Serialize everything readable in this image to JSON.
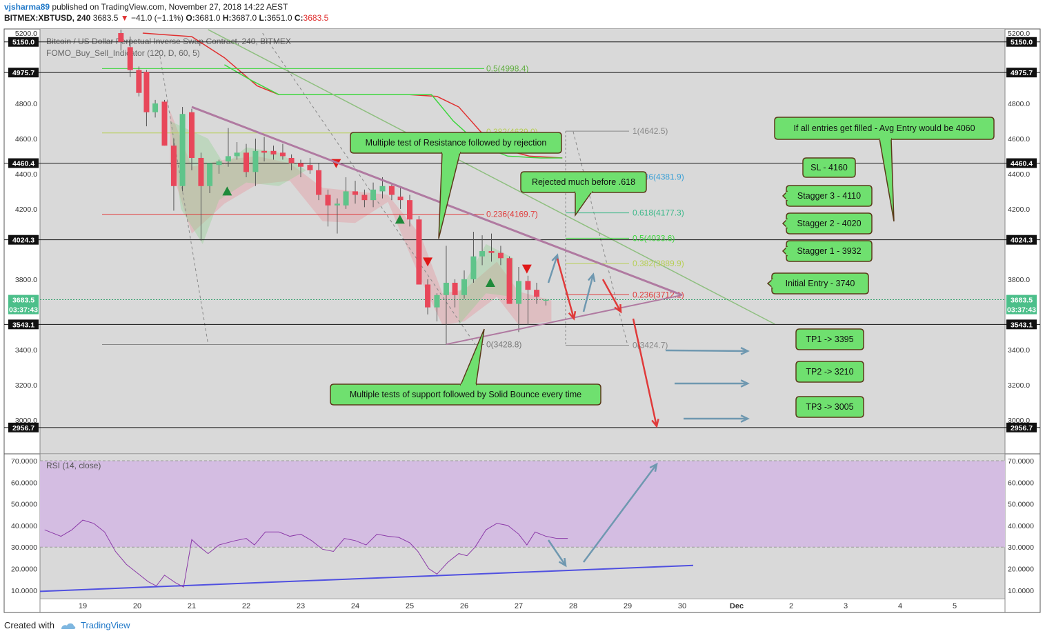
{
  "header": {
    "author": "vjsharma89",
    "published_text": "published on TradingView.com, November 27, 2018 14:22 AEST",
    "symbol": "BITMEX:XBTUSD, 240",
    "last": "3683.5",
    "change": "−41.0 (−1.1%)",
    "o_label": "O:",
    "o": "3681.0",
    "h_label": "H:",
    "h": "3687.0",
    "l_label": "L:",
    "l": "3651.0",
    "c_label": "C:",
    "c": "3683.5"
  },
  "footer": {
    "created_with": "Created with",
    "brand": "TradingView"
  },
  "colors": {
    "bg": "#d9d9d9",
    "up": "#5fc48a",
    "down": "#e8475a",
    "label_bg": "#6fe06f",
    "label_border": "#5a3a1a",
    "trend": "#b07aa1",
    "arrow_red": "#e03a3a",
    "arrow_blue": "#6f98b0",
    "rsi_line": "#8b3aa8",
    "rsi_band": "#d4bde2",
    "rsi_trend": "#5050e0"
  },
  "chart_data": {
    "type": "candlestick",
    "title": "Bitcoin / US Dollar Perpetual Inverse Swap Contract, 240, BITMEX",
    "indicator": "FOMO_Buy_Sell_Indicator (120, D, 60, 5)",
    "x_ticks": [
      "19",
      "20",
      "21",
      "22",
      "23",
      "24",
      "25",
      "26",
      "27",
      "28",
      "29",
      "30",
      "Dec",
      "2",
      "3",
      "4",
      "5"
    ],
    "y_ticks": [
      "5200.0",
      "4800.0",
      "4600.0",
      "4400.0",
      "4200.0",
      "3800.0",
      "3400.0",
      "3200.0",
      "3000.0"
    ],
    "ylim": [
      2940,
      5220
    ],
    "price_marks": [
      {
        "label": "5150.0",
        "value": 5150.0
      },
      {
        "label": "4975.7",
        "value": 4975.7
      },
      {
        "label": "4460.4",
        "value": 4460.4
      },
      {
        "label": "4024.3",
        "value": 4024.3
      },
      {
        "label": "3543.1",
        "value": 3543.1
      },
      {
        "label": "2956.7",
        "value": 2956.7
      }
    ],
    "last_price": {
      "label": "3683.5",
      "value": 3683.5,
      "countdown": "03:37:43"
    },
    "candles": [
      {
        "t": 19.7,
        "o": 5200,
        "h": 5220,
        "l": 5100,
        "c": 5150
      },
      {
        "t": 19.87,
        "o": 5120,
        "h": 5180,
        "l": 4950,
        "c": 4990
      },
      {
        "t": 20.03,
        "o": 4990,
        "h": 5010,
        "l": 4840,
        "c": 4860
      },
      {
        "t": 20.17,
        "o": 4980,
        "h": 4990,
        "l": 4670,
        "c": 4750
      },
      {
        "t": 20.33,
        "o": 4750,
        "h": 4820,
        "l": 4720,
        "c": 4800
      },
      {
        "t": 20.5,
        "o": 4810,
        "h": 4820,
        "l": 4560,
        "c": 4560
      },
      {
        "t": 20.67,
        "o": 4560,
        "h": 4600,
        "l": 4190,
        "c": 4330
      },
      {
        "t": 20.83,
        "o": 4330,
        "h": 4780,
        "l": 4300,
        "c": 4740
      },
      {
        "t": 21.0,
        "o": 4750,
        "h": 4770,
        "l": 4420,
        "c": 4490
      },
      {
        "t": 21.17,
        "o": 4490,
        "h": 4520,
        "l": 4020,
        "c": 4330
      },
      {
        "t": 21.33,
        "o": 4330,
        "h": 4440,
        "l": 4290,
        "c": 4460
      },
      {
        "t": 21.5,
        "o": 4450,
        "h": 4480,
        "l": 4400,
        "c": 4470
      },
      {
        "t": 21.67,
        "o": 4470,
        "h": 4660,
        "l": 4440,
        "c": 4500
      },
      {
        "t": 21.83,
        "o": 4500,
        "h": 4580,
        "l": 4480,
        "c": 4520
      },
      {
        "t": 22.0,
        "o": 4520,
        "h": 4570,
        "l": 4380,
        "c": 4410
      },
      {
        "t": 22.17,
        "o": 4410,
        "h": 4600,
        "l": 4330,
        "c": 4530
      },
      {
        "t": 22.33,
        "o": 4530,
        "h": 4610,
        "l": 4470,
        "c": 4520
      },
      {
        "t": 22.5,
        "o": 4530,
        "h": 4560,
        "l": 4480,
        "c": 4510
      },
      {
        "t": 22.67,
        "o": 4520,
        "h": 4570,
        "l": 4480,
        "c": 4500
      },
      {
        "t": 22.83,
        "o": 4490,
        "h": 4510,
        "l": 4420,
        "c": 4460
      },
      {
        "t": 23.0,
        "o": 4460,
        "h": 4480,
        "l": 4380,
        "c": 4440
      },
      {
        "t": 23.17,
        "o": 4450,
        "h": 4490,
        "l": 4400,
        "c": 4420
      },
      {
        "t": 23.33,
        "o": 4420,
        "h": 4460,
        "l": 4250,
        "c": 4280
      },
      {
        "t": 23.5,
        "o": 4280,
        "h": 4310,
        "l": 4100,
        "c": 4220
      },
      {
        "t": 23.67,
        "o": 4220,
        "h": 4260,
        "l": 4060,
        "c": 4230
      },
      {
        "t": 23.83,
        "o": 4220,
        "h": 4380,
        "l": 4200,
        "c": 4300
      },
      {
        "t": 24.0,
        "o": 4300,
        "h": 4360,
        "l": 4230,
        "c": 4280
      },
      {
        "t": 24.17,
        "o": 4280,
        "h": 4310,
        "l": 4210,
        "c": 4250
      },
      {
        "t": 24.33,
        "o": 4250,
        "h": 4350,
        "l": 4210,
        "c": 4310
      },
      {
        "t": 24.5,
        "o": 4300,
        "h": 4380,
        "l": 4260,
        "c": 4330
      },
      {
        "t": 24.67,
        "o": 4330,
        "h": 4340,
        "l": 4250,
        "c": 4280
      },
      {
        "t": 24.83,
        "o": 4270,
        "h": 4320,
        "l": 4200,
        "c": 4250
      },
      {
        "t": 25.0,
        "o": 4250,
        "h": 4280,
        "l": 4100,
        "c": 4140
      },
      {
        "t": 25.17,
        "o": 4140,
        "h": 4160,
        "l": 3770,
        "c": 3770
      },
      {
        "t": 25.33,
        "o": 3770,
        "h": 3800,
        "l": 3600,
        "c": 3640
      },
      {
        "t": 25.5,
        "o": 3640,
        "h": 3720,
        "l": 3560,
        "c": 3710
      },
      {
        "t": 25.67,
        "o": 3710,
        "h": 3990,
        "l": 3430,
        "c": 3780
      },
      {
        "t": 25.83,
        "o": 3780,
        "h": 3800,
        "l": 3640,
        "c": 3710
      },
      {
        "t": 26.0,
        "o": 3710,
        "h": 3850,
        "l": 3690,
        "c": 3800
      },
      {
        "t": 26.17,
        "o": 3800,
        "h": 4070,
        "l": 3780,
        "c": 3930
      },
      {
        "t": 26.33,
        "o": 3930,
        "h": 4050,
        "l": 3880,
        "c": 3960
      },
      {
        "t": 26.5,
        "o": 3960,
        "h": 4060,
        "l": 3900,
        "c": 3950
      },
      {
        "t": 26.67,
        "o": 3950,
        "h": 3990,
        "l": 3880,
        "c": 3920
      },
      {
        "t": 26.83,
        "o": 3920,
        "h": 3930,
        "l": 3660,
        "c": 3660
      },
      {
        "t": 27.0,
        "o": 3660,
        "h": 3870,
        "l": 3500,
        "c": 3790
      },
      {
        "t": 27.17,
        "o": 3790,
        "h": 3820,
        "l": 3540,
        "c": 3740
      },
      {
        "t": 27.33,
        "o": 3740,
        "h": 3780,
        "l": 3660,
        "c": 3700
      },
      {
        "t": 27.5,
        "o": 3681,
        "h": 3687,
        "l": 3651,
        "c": 3683.5
      }
    ],
    "rsi": {
      "label": "RSI (14, close)",
      "y_ticks": [
        "70.0000",
        "60.0000",
        "50.0000",
        "40.0000",
        "30.0000",
        "20.0000",
        "10.0000"
      ],
      "ylim": [
        8,
        72
      ],
      "band": [
        30,
        70
      ],
      "points": [
        [
          18.3,
          38
        ],
        [
          18.6,
          35
        ],
        [
          18.8,
          38
        ],
        [
          19.0,
          42.5
        ],
        [
          19.2,
          41
        ],
        [
          19.4,
          37
        ],
        [
          19.6,
          28
        ],
        [
          19.8,
          22
        ],
        [
          20.0,
          18
        ],
        [
          20.2,
          14
        ],
        [
          20.35,
          12
        ],
        [
          20.5,
          17
        ],
        [
          20.7,
          13.5
        ],
        [
          20.85,
          11.5
        ],
        [
          21.0,
          33.5
        ],
        [
          21.15,
          30
        ],
        [
          21.3,
          27
        ],
        [
          21.5,
          31
        ],
        [
          21.8,
          33
        ],
        [
          22.0,
          34
        ],
        [
          22.15,
          31
        ],
        [
          22.35,
          37
        ],
        [
          22.6,
          37
        ],
        [
          22.8,
          35
        ],
        [
          23.0,
          36
        ],
        [
          23.2,
          33
        ],
        [
          23.4,
          29
        ],
        [
          23.6,
          28
        ],
        [
          23.8,
          34
        ],
        [
          24.0,
          33
        ],
        [
          24.2,
          31
        ],
        [
          24.4,
          36
        ],
        [
          24.6,
          35
        ],
        [
          24.8,
          34.5
        ],
        [
          25.0,
          32
        ],
        [
          25.15,
          28
        ],
        [
          25.35,
          20
        ],
        [
          25.5,
          17.5
        ],
        [
          25.7,
          23
        ],
        [
          25.9,
          27
        ],
        [
          26.05,
          26
        ],
        [
          26.2,
          30
        ],
        [
          26.4,
          38
        ],
        [
          26.6,
          41
        ],
        [
          26.8,
          40
        ],
        [
          27.0,
          36
        ],
        [
          27.15,
          31
        ],
        [
          27.3,
          37
        ],
        [
          27.5,
          35
        ],
        [
          27.7,
          34
        ],
        [
          27.9,
          34
        ]
      ]
    },
    "annotations": [
      {
        "id": "resistance",
        "text": "Multiple test of Resistance followed by rejection"
      },
      {
        "id": "support",
        "text": "Multiple tests of support followed by Solid Bounce every time"
      },
      {
        "id": "rejected",
        "text": "Rejected much before .618"
      },
      {
        "id": "avg",
        "text": "If all entries get filled - Avg Entry would be 4060"
      },
      {
        "id": "sl",
        "text": "SL - 4160"
      },
      {
        "id": "stagger3",
        "text": "Stagger 3 - 4110"
      },
      {
        "id": "stagger2",
        "text": "Stagger 2 - 4020"
      },
      {
        "id": "stagger1",
        "text": "Stagger 1 - 3932"
      },
      {
        "id": "initial",
        "text": "Initial Entry - 3740"
      },
      {
        "id": "tp1",
        "text": "TP1 -> 3395"
      },
      {
        "id": "tp2",
        "text": "TP2 -> 3210"
      },
      {
        "id": "tp3",
        "text": "TP3 -> 3005"
      }
    ],
    "fib_left": [
      {
        "label": "0.5(4998.4)",
        "value": 4998.4
      },
      {
        "label": "0.236(4169.7)",
        "value": 4169.7
      },
      {
        "label": "0(3428.8)",
        "value": 3428.8
      },
      {
        "label": "0.382(4639.0)",
        "value": 4639.0
      }
    ],
    "fib_right": [
      {
        "label": "1(4642.5)",
        "value": 4642.5
      },
      {
        "label": "0.786(4381.9)",
        "value": 4381.9
      },
      {
        "label": "0.618(4177.3)",
        "value": 4177.3
      },
      {
        "label": "0.5(4033.6)",
        "value": 4033.6
      },
      {
        "label": "0.382(3889.9)",
        "value": 3889.9
      },
      {
        "label": "0.236(3712.1)",
        "value": 3712.1
      },
      {
        "label": "0(3424.7)",
        "value": 3424.7
      }
    ]
  }
}
